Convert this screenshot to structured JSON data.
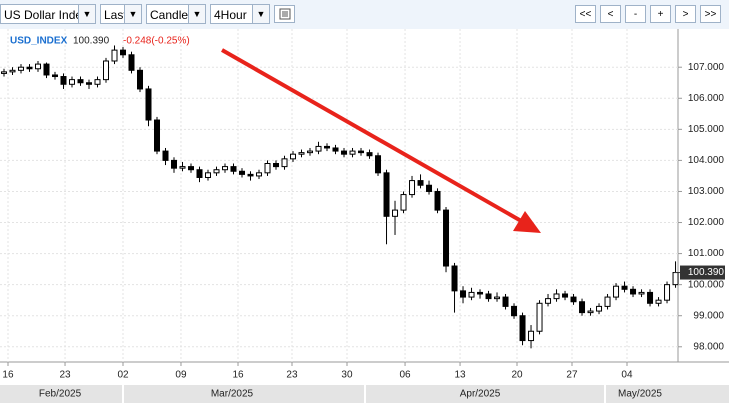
{
  "toolbar": {
    "symbol": "US Dollar Inde",
    "price_type": "Last",
    "chart_style": "Candle",
    "interval": "4Hour",
    "nav_buttons": [
      "<<",
      "<",
      "-",
      "+",
      ">",
      ">>"
    ]
  },
  "chart_data": {
    "type": "candlestick",
    "symbol": "USD_INDEX",
    "last_text": "100.390",
    "change_text": "-0.248(-0.25%)",
    "open": [
      106.8,
      106.85,
      106.9,
      107.0,
      106.95,
      107.1,
      106.75,
      106.7,
      106.45,
      106.6,
      106.5,
      106.45,
      106.6,
      107.2,
      107.55,
      107.4,
      106.9,
      106.3,
      105.3,
      104.3,
      104.0,
      103.75,
      103.8,
      103.7,
      103.45,
      103.6,
      103.7,
      103.8,
      103.65,
      103.55,
      103.5,
      103.6,
      103.9,
      103.8,
      104.05,
      104.2,
      104.25,
      104.3,
      104.45,
      104.4,
      104.3,
      104.2,
      104.3,
      104.25,
      104.15,
      103.6,
      102.2,
      102.4,
      102.9,
      103.35,
      103.2,
      103.0,
      102.4,
      100.6,
      99.8,
      99.6,
      99.75,
      99.7,
      99.55,
      99.6,
      99.3,
      99.0,
      98.2,
      98.5,
      99.4,
      99.55,
      99.7,
      99.6,
      99.45,
      99.1,
      99.15,
      99.3,
      99.6,
      99.95,
      99.85,
      99.7,
      99.75,
      99.4,
      99.5,
      100.0
    ],
    "high": [
      106.95,
      107.0,
      107.1,
      107.1,
      107.2,
      107.15,
      106.85,
      106.8,
      106.7,
      106.7,
      106.6,
      106.7,
      107.3,
      107.7,
      107.65,
      107.5,
      107.0,
      106.4,
      105.4,
      104.4,
      104.1,
      103.95,
      103.9,
      103.8,
      103.7,
      103.8,
      103.9,
      103.9,
      103.75,
      103.65,
      103.7,
      104.0,
      104.0,
      104.15,
      104.3,
      104.35,
      104.4,
      104.6,
      104.55,
      104.5,
      104.4,
      104.4,
      104.4,
      104.35,
      104.25,
      103.7,
      102.7,
      103.0,
      103.5,
      103.55,
      103.35,
      103.1,
      102.5,
      100.7,
      99.95,
      99.9,
      99.85,
      99.8,
      99.75,
      99.7,
      99.4,
      99.1,
      98.7,
      99.5,
      99.7,
      99.85,
      99.8,
      99.7,
      99.55,
      99.25,
      99.4,
      99.7,
      100.05,
      100.1,
      99.95,
      99.85,
      99.85,
      99.6,
      100.1,
      100.75
    ],
    "low": [
      106.7,
      106.75,
      106.8,
      106.85,
      106.85,
      106.65,
      106.6,
      106.3,
      106.35,
      106.4,
      106.3,
      106.35,
      106.5,
      107.1,
      107.3,
      106.8,
      106.2,
      105.1,
      104.2,
      103.85,
      103.6,
      103.65,
      103.6,
      103.3,
      103.35,
      103.5,
      103.6,
      103.55,
      103.45,
      103.35,
      103.4,
      103.5,
      103.7,
      103.7,
      103.95,
      104.1,
      104.15,
      104.2,
      104.3,
      104.2,
      104.1,
      104.1,
      104.15,
      104.05,
      103.5,
      101.3,
      101.6,
      102.3,
      102.8,
      103.1,
      102.9,
      102.3,
      100.4,
      99.1,
      99.4,
      99.5,
      99.55,
      99.45,
      99.45,
      99.2,
      98.9,
      98.05,
      97.95,
      98.4,
      99.3,
      99.45,
      99.5,
      99.35,
      99.0,
      99.0,
      99.05,
      99.2,
      99.5,
      99.75,
      99.6,
      99.6,
      99.3,
      99.3,
      99.4,
      99.9
    ],
    "close": [
      106.85,
      106.9,
      107.0,
      106.95,
      107.1,
      106.75,
      106.7,
      106.45,
      106.6,
      106.5,
      106.45,
      106.6,
      107.2,
      107.55,
      107.4,
      106.9,
      106.3,
      105.3,
      104.3,
      104.0,
      103.75,
      103.8,
      103.7,
      103.45,
      103.6,
      103.7,
      103.8,
      103.65,
      103.55,
      103.5,
      103.6,
      103.9,
      103.8,
      104.05,
      104.2,
      104.25,
      104.3,
      104.45,
      104.4,
      104.3,
      104.2,
      104.3,
      104.25,
      104.15,
      103.6,
      102.2,
      102.4,
      102.9,
      103.35,
      103.2,
      103.0,
      102.4,
      100.6,
      99.8,
      99.6,
      99.75,
      99.7,
      99.55,
      99.6,
      99.3,
      99.0,
      98.2,
      98.5,
      99.4,
      99.55,
      99.7,
      99.6,
      99.45,
      99.1,
      99.15,
      99.3,
      99.6,
      99.95,
      99.85,
      99.7,
      99.75,
      99.4,
      99.5,
      100.0,
      100.39
    ],
    "color": "#000000",
    "xlim": [
      -0.47,
      79.29
    ],
    "xticks": [
      {
        "value": 0.47,
        "label": "16"
      },
      {
        "value": 7.18,
        "label": "23"
      },
      {
        "value": 14,
        "label": "02"
      },
      {
        "value": 20.82,
        "label": "09"
      },
      {
        "value": 27.53,
        "label": "16"
      },
      {
        "value": 33.88,
        "label": "23"
      },
      {
        "value": 40.35,
        "label": "30"
      },
      {
        "value": 47.18,
        "label": "06"
      },
      {
        "value": 53.65,
        "label": "13"
      },
      {
        "value": 60.35,
        "label": "20"
      },
      {
        "value": 66.82,
        "label": "27"
      },
      {
        "value": 73.29,
        "label": "04"
      }
    ],
    "month_ticks": [
      {
        "value": 6.59,
        "label": "Feb/2025"
      },
      {
        "value": 26.82,
        "label": "Mar/2025"
      },
      {
        "value": 56,
        "label": "Apr/2025"
      },
      {
        "value": 74.82,
        "label": "May/2025"
      }
    ],
    "ylim": [
      97.51,
      108.23
    ],
    "yticks": [
      {
        "value": 98,
        "label": "98.000"
      },
      {
        "value": 99,
        "label": "99.000"
      },
      {
        "value": 100,
        "label": "100.000"
      },
      {
        "value": 101,
        "label": "101.000"
      },
      {
        "value": 102,
        "label": "102.000"
      },
      {
        "value": 103,
        "label": "103.000"
      },
      {
        "value": 104,
        "label": "104.000"
      },
      {
        "value": 105,
        "label": "105.000"
      },
      {
        "value": 106,
        "label": "106.000"
      },
      {
        "value": 107,
        "label": "107.000"
      }
    ],
    "last_price": {
      "value": 100.39,
      "label": "100.390"
    },
    "grid": true
  }
}
